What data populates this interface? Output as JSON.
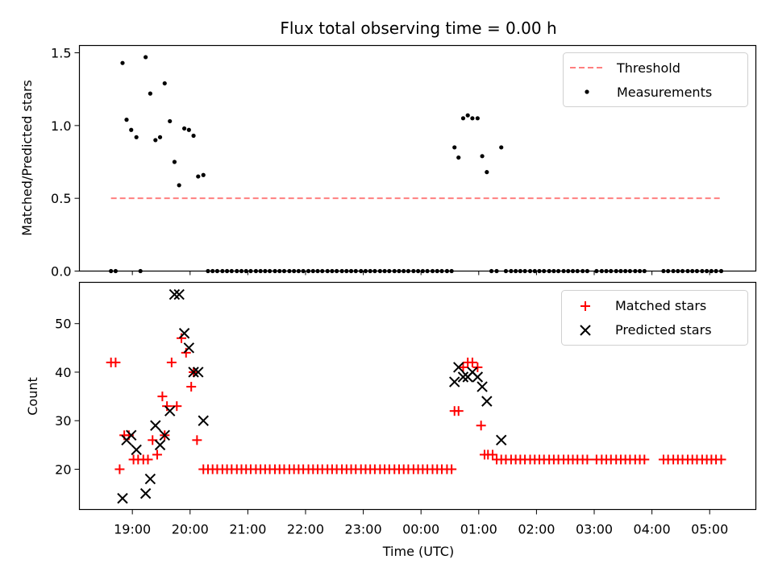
{
  "chart_data": [
    {
      "type": "scatter",
      "panel": "top",
      "title": "Flux total observing time = 0.00 h",
      "xlabel": "",
      "ylabel": "Matched/Predicted stars",
      "xlim_hours": [
        18.083,
        29.8
      ],
      "ylim": [
        0.0,
        1.55
      ],
      "yticks": [
        0.0,
        0.5,
        1.0,
        1.5
      ],
      "ytick_labels": [
        "0.0",
        "0.5",
        "1.0",
        "1.5"
      ],
      "legend_location": "top-right",
      "threshold": {
        "name": "Threshold",
        "value": 0.5,
        "x_range_hours": [
          18.63,
          29.21
        ],
        "color": "#ff7f7f",
        "linestyle": "dashed"
      },
      "series": [
        {
          "name": "Measurements",
          "color": "#000000",
          "marker": "dot",
          "x_hours": [
            18.63,
            18.71,
            18.83,
            18.9,
            18.98,
            19.07,
            19.14,
            19.23,
            19.31,
            19.4,
            19.48,
            19.56,
            19.65,
            19.73,
            19.81,
            19.9,
            19.98,
            20.06,
            20.14,
            20.23,
            20.31,
            20.39,
            20.47,
            20.56,
            20.64,
            20.72,
            20.81,
            20.89,
            20.97,
            21.05,
            21.14,
            21.22,
            21.3,
            21.38,
            21.47,
            21.55,
            21.63,
            21.72,
            21.8,
            21.88,
            21.96,
            22.05,
            22.13,
            22.21,
            22.29,
            22.38,
            22.46,
            22.54,
            22.63,
            22.71,
            22.79,
            22.87,
            22.96,
            23.04,
            23.12,
            23.2,
            23.29,
            23.37,
            23.45,
            23.54,
            23.62,
            23.7,
            23.78,
            23.87,
            23.95,
            24.03,
            24.11,
            24.2,
            24.28,
            24.36,
            24.45,
            24.53,
            24.58,
            24.65,
            24.73,
            24.81,
            24.89,
            24.98,
            25.06,
            25.14,
            25.22,
            25.31,
            25.39,
            25.47,
            25.56,
            25.64,
            25.72,
            25.8,
            25.89,
            25.97,
            26.05,
            26.13,
            26.22,
            26.3,
            26.38,
            26.47,
            26.55,
            26.63,
            26.71,
            26.8,
            26.88,
            27.04,
            27.13,
            27.21,
            27.29,
            27.38,
            27.46,
            27.54,
            27.62,
            27.71,
            27.79,
            27.87,
            28.2,
            28.28,
            28.37,
            28.45,
            28.53,
            28.62,
            28.7,
            28.78,
            28.87,
            28.95,
            29.03,
            29.11,
            29.2
          ],
          "y": [
            0.0,
            0.0,
            1.43,
            1.04,
            0.97,
            0.92,
            0.0,
            1.47,
            1.22,
            0.9,
            0.92,
            1.29,
            1.03,
            0.75,
            0.59,
            0.98,
            0.97,
            0.93,
            0.65,
            0.66,
            0.0,
            0.0,
            0.0,
            0.0,
            0.0,
            0.0,
            0.0,
            0.0,
            0.0,
            0.0,
            0.0,
            0.0,
            0.0,
            0.0,
            0.0,
            0.0,
            0.0,
            0.0,
            0.0,
            0.0,
            0.0,
            0.0,
            0.0,
            0.0,
            0.0,
            0.0,
            0.0,
            0.0,
            0.0,
            0.0,
            0.0,
            0.0,
            0.0,
            0.0,
            0.0,
            0.0,
            0.0,
            0.0,
            0.0,
            0.0,
            0.0,
            0.0,
            0.0,
            0.0,
            0.0,
            0.0,
            0.0,
            0.0,
            0.0,
            0.0,
            0.0,
            0.0,
            0.85,
            0.78,
            1.05,
            1.07,
            1.05,
            1.05,
            0.79,
            0.68,
            0.0,
            0.0,
            0.85,
            0.0,
            0.0,
            0.0,
            0.0,
            0.0,
            0.0,
            0.0,
            0.0,
            0.0,
            0.0,
            0.0,
            0.0,
            0.0,
            0.0,
            0.0,
            0.0,
            0.0,
            0.0,
            0.0,
            0.0,
            0.0,
            0.0,
            0.0,
            0.0,
            0.0,
            0.0,
            0.0,
            0.0,
            0.0,
            0.0,
            0.0,
            0.0,
            0.0,
            0.0,
            0.0,
            0.0,
            0.0,
            0.0,
            0.0,
            0.0,
            0.0,
            0.0
          ]
        }
      ]
    },
    {
      "type": "scatter",
      "panel": "bottom",
      "title": "",
      "xlabel": "Time (UTC)",
      "ylabel": "Count",
      "xlim_hours": [
        18.083,
        29.8
      ],
      "ylim": [
        11.7,
        58.5
      ],
      "yticks": [
        20,
        30,
        40,
        50
      ],
      "ytick_labels": [
        "20",
        "30",
        "40",
        "50"
      ],
      "xticks_hours": [
        19,
        20,
        21,
        22,
        23,
        24,
        25,
        26,
        27,
        28,
        29
      ],
      "xtick_labels": [
        "19:00",
        "20:00",
        "21:00",
        "22:00",
        "23:00",
        "00:00",
        "01:00",
        "02:00",
        "03:00",
        "04:00",
        "05:00"
      ],
      "legend_location": "top-right",
      "series": [
        {
          "name": "Matched stars",
          "color": "#ff0000",
          "marker": "plus",
          "x_hours": [
            18.63,
            18.71,
            18.78,
            18.86,
            18.94,
            19.02,
            19.1,
            19.19,
            19.27,
            19.35,
            19.43,
            19.52,
            19.56,
            19.6,
            19.68,
            19.77,
            19.85,
            19.93,
            20.02,
            20.06,
            20.12,
            20.23,
            20.31,
            20.39,
            20.47,
            20.56,
            20.64,
            20.72,
            20.81,
            20.89,
            20.97,
            21.05,
            21.14,
            21.22,
            21.3,
            21.38,
            21.47,
            21.55,
            21.63,
            21.72,
            21.8,
            21.88,
            21.96,
            22.05,
            22.13,
            22.21,
            22.29,
            22.38,
            22.46,
            22.54,
            22.63,
            22.71,
            22.79,
            22.87,
            22.96,
            23.04,
            23.12,
            23.2,
            23.29,
            23.37,
            23.45,
            23.54,
            23.62,
            23.7,
            23.78,
            23.87,
            23.95,
            24.03,
            24.11,
            24.2,
            24.28,
            24.36,
            24.45,
            24.53,
            24.58,
            24.65,
            24.73,
            24.81,
            24.89,
            24.98,
            25.04,
            25.1,
            25.16,
            25.24,
            25.31,
            25.39,
            25.47,
            25.56,
            25.64,
            25.72,
            25.8,
            25.89,
            25.97,
            26.05,
            26.13,
            26.22,
            26.3,
            26.38,
            26.47,
            26.55,
            26.63,
            26.71,
            26.8,
            26.88,
            27.04,
            27.13,
            27.21,
            27.29,
            27.38,
            27.46,
            27.54,
            27.62,
            27.71,
            27.79,
            27.87,
            28.2,
            28.28,
            28.37,
            28.45,
            28.53,
            28.62,
            28.7,
            28.78,
            28.87,
            28.95,
            29.03,
            29.11,
            29.2
          ],
          "y": [
            42,
            42,
            20,
            27,
            27,
            22,
            22,
            22,
            22,
            26,
            23,
            35,
            27,
            33,
            42,
            33,
            47,
            44,
            37,
            40,
            26,
            20,
            20,
            20,
            20,
            20,
            20,
            20,
            20,
            20,
            20,
            20,
            20,
            20,
            20,
            20,
            20,
            20,
            20,
            20,
            20,
            20,
            20,
            20,
            20,
            20,
            20,
            20,
            20,
            20,
            20,
            20,
            20,
            20,
            20,
            20,
            20,
            20,
            20,
            20,
            20,
            20,
            20,
            20,
            20,
            20,
            20,
            20,
            20,
            20,
            20,
            20,
            20,
            20,
            32,
            32,
            41,
            42,
            42,
            41,
            29,
            23,
            23,
            23,
            22,
            22,
            22,
            22,
            22,
            22,
            22,
            22,
            22,
            22,
            22,
            22,
            22,
            22,
            22,
            22,
            22,
            22,
            22,
            22,
            22,
            22,
            22,
            22,
            22,
            22,
            22,
            22,
            22,
            22,
            22,
            22,
            22,
            22,
            22,
            22,
            22,
            22,
            22,
            22,
            22,
            22,
            22,
            22
          ]
        },
        {
          "name": "Predicted stars",
          "color": "#000000",
          "marker": "x",
          "x_hours": [
            18.83,
            18.9,
            18.98,
            19.07,
            19.23,
            19.31,
            19.4,
            19.48,
            19.56,
            19.65,
            19.73,
            19.81,
            19.9,
            19.98,
            20.06,
            20.14,
            20.23,
            24.58,
            24.65,
            24.73,
            24.81,
            24.89,
            24.98,
            25.06,
            25.14,
            25.39
          ],
          "y": [
            14,
            26,
            27,
            24,
            15,
            18,
            29,
            25,
            27,
            32,
            56,
            56,
            48,
            45,
            40,
            40,
            30,
            38,
            41,
            39,
            39,
            40,
            39,
            37,
            34,
            26
          ]
        }
      ]
    }
  ]
}
